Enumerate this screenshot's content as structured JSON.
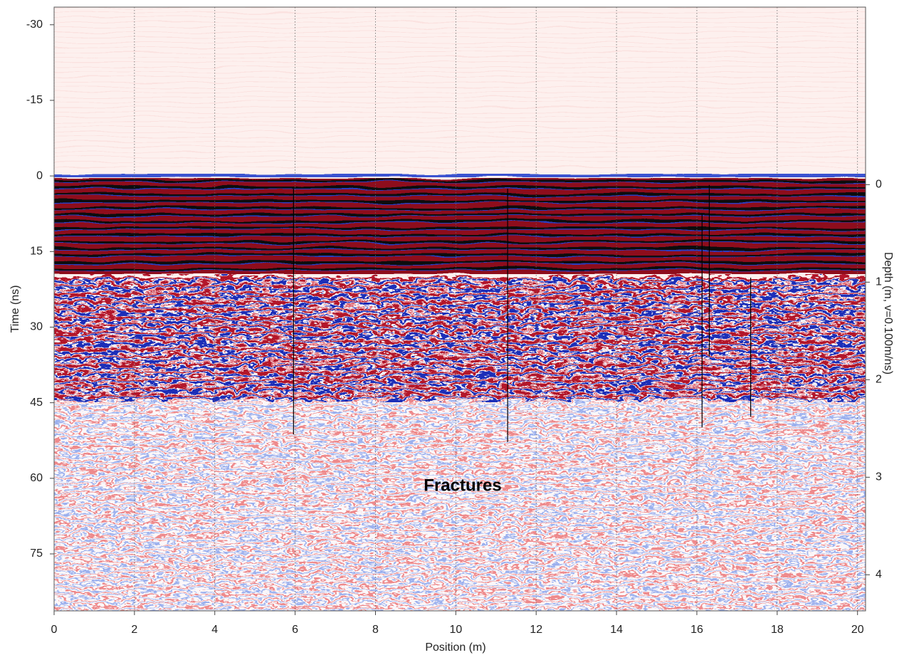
{
  "chart_data": {
    "type": "radargram",
    "xlabel": "Position (m)",
    "ylabel": "Time (ns)",
    "y2label": "Depth (m, v=0.100m/ns)",
    "annotation": "Fractures",
    "xlim": [
      0,
      20.2
    ],
    "xticks": [
      0,
      2,
      4,
      6,
      8,
      10,
      12,
      14,
      16,
      18,
      20
    ],
    "ylim": [
      -33.5,
      86.3
    ],
    "yticks": [
      -30,
      -15,
      0,
      15,
      30,
      45,
      60,
      75
    ],
    "y_inverted": true,
    "y2lim": [
      -1.82,
      4.37
    ],
    "y2ticks": [
      0,
      1,
      2,
      3,
      4
    ],
    "grid": true,
    "fracture_color": "#000000",
    "fractures": [
      {
        "x": 5.96,
        "t": [
          2.5,
          51.3
        ]
      },
      {
        "x": 11.29,
        "t": [
          2.5,
          52.8
        ]
      },
      {
        "x": 16.13,
        "t": [
          7.5,
          49.9
        ]
      },
      {
        "x": 16.31,
        "t": [
          1.8,
          35.8
        ]
      },
      {
        "x": 17.34,
        "t": [
          20.2,
          47.8
        ]
      }
    ]
  }
}
